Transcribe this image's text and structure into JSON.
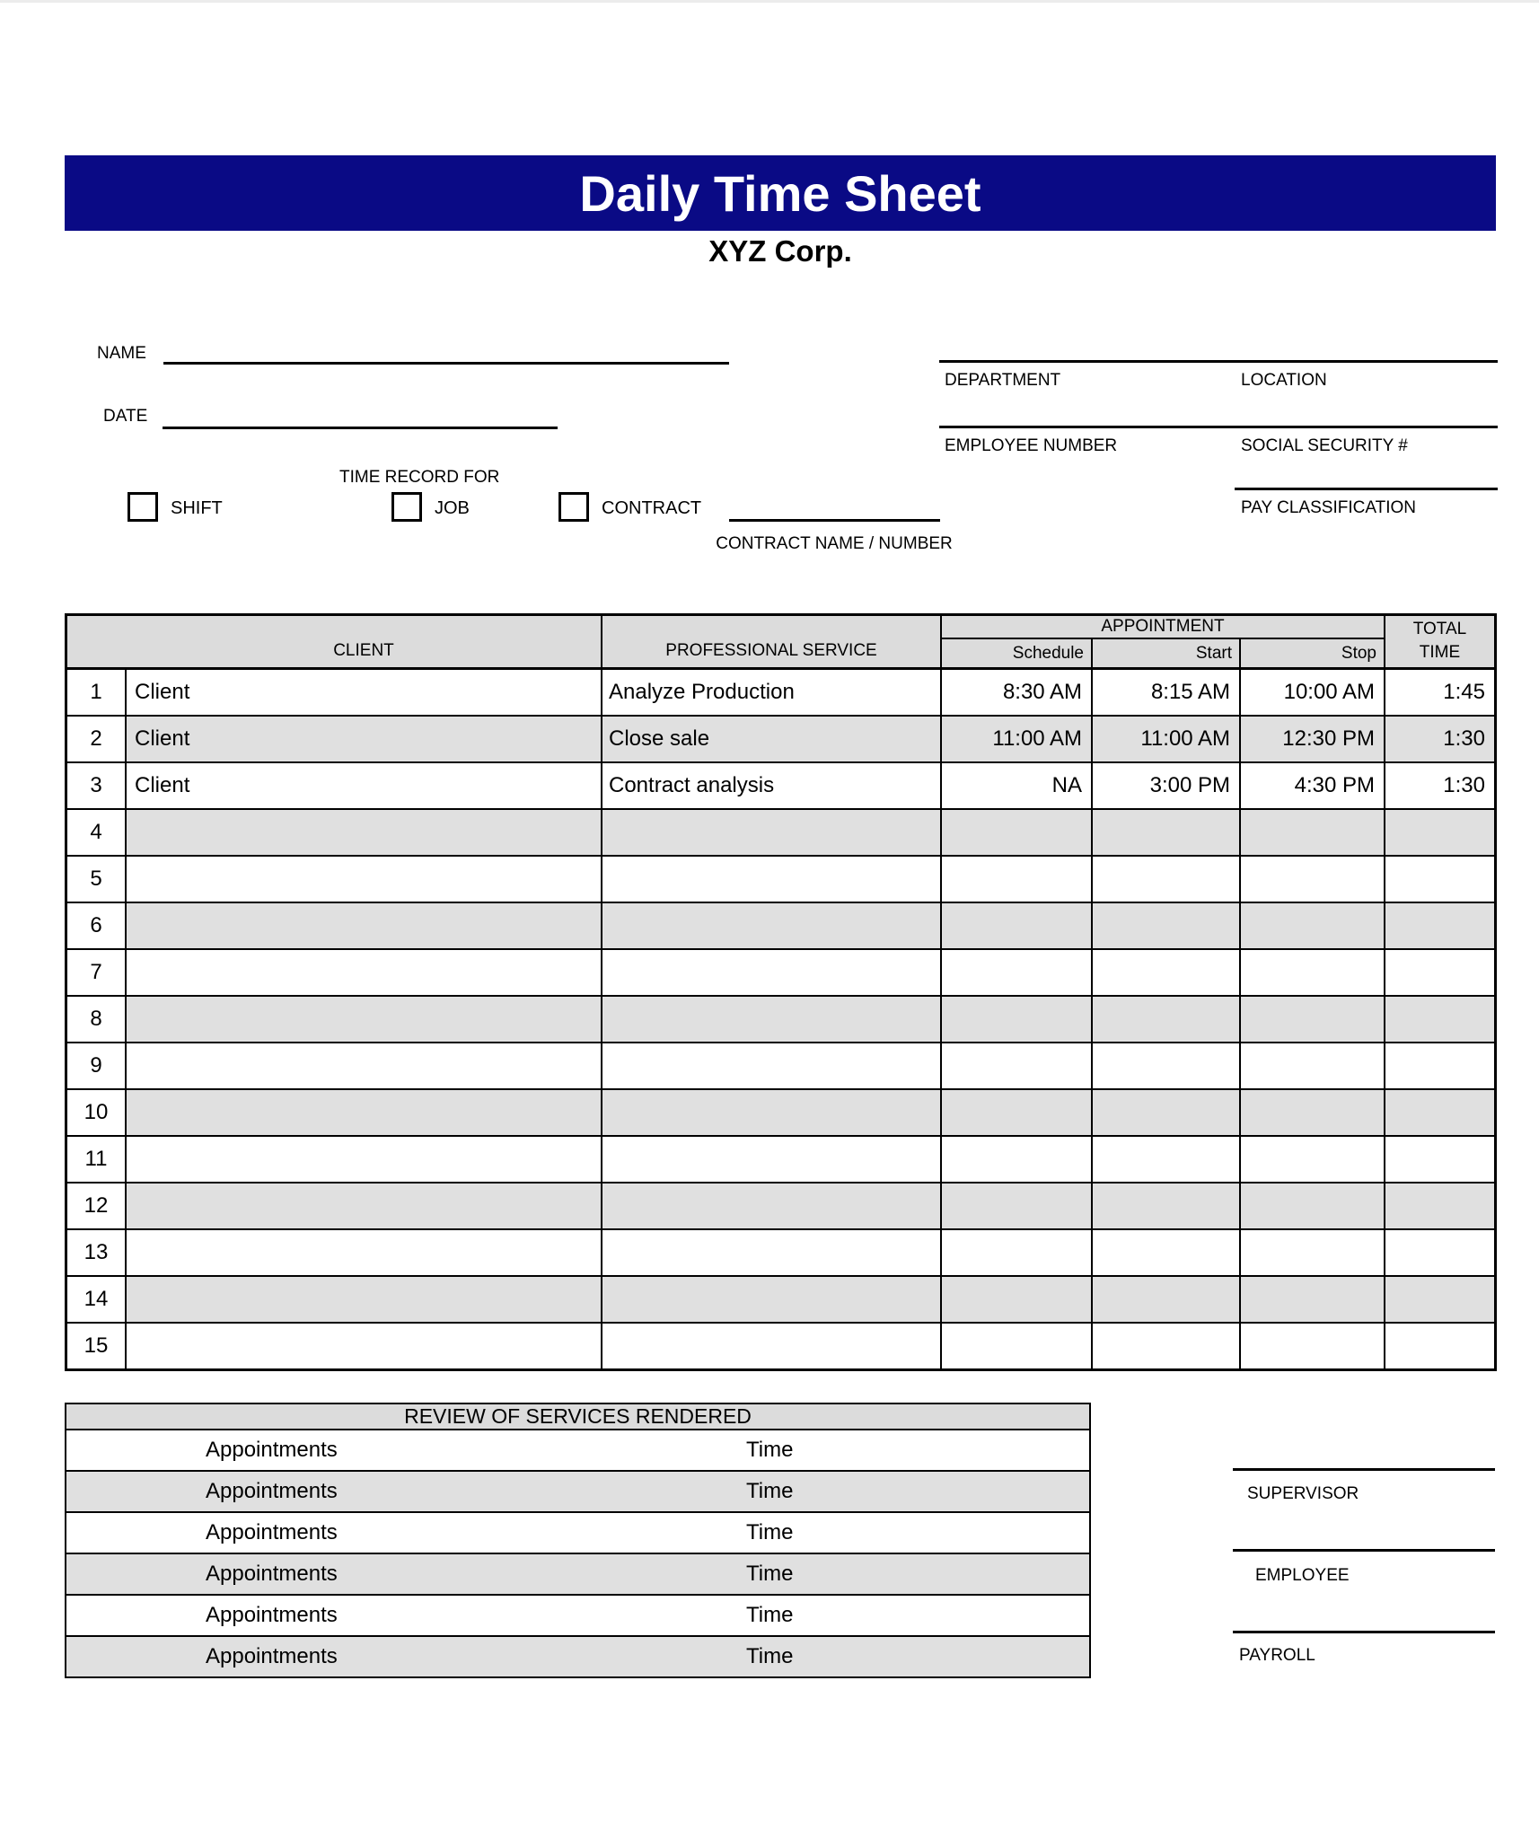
{
  "page": {
    "title": "Daily Time Sheet",
    "company": "XYZ Corp."
  },
  "colors": {
    "title_bar_navy": "#0a0a85",
    "table_header_gray": "#dcdcdc",
    "row_stripe_gray": "#e0e0e0",
    "line_black": "#000000"
  },
  "fields": {
    "name_label": "NAME",
    "date_label": "DATE",
    "department_label": "DEPARTMENT",
    "location_label": "LOCATION",
    "employee_number_label": "EMPLOYEE NUMBER",
    "social_security_label": "SOCIAL SECURITY #",
    "pay_classification_label": "PAY CLASSIFICATION"
  },
  "time_record": {
    "heading": "TIME RECORD FOR",
    "options": [
      {
        "label": "SHIFT",
        "checked": false
      },
      {
        "label": "JOB",
        "checked": false
      },
      {
        "label": "CONTRACT",
        "checked": false
      }
    ],
    "contract_line_label": "CONTRACT NAME / NUMBER"
  },
  "timesheet_table": {
    "headers": {
      "client": "CLIENT",
      "service": "PROFESSIONAL SERVICE",
      "appointment": "APPOINTMENT",
      "schedule": "Schedule",
      "start": "Start",
      "stop": "Stop",
      "total_line1": "TOTAL",
      "total_line2": "TIME"
    },
    "rows": [
      {
        "num": "1",
        "client": "Client",
        "service": "Analyze Production",
        "schedule": "8:30 AM",
        "start": "8:15 AM",
        "stop": "10:00 AM",
        "total": "1:45"
      },
      {
        "num": "2",
        "client": "Client",
        "service": "Close sale",
        "schedule": "11:00 AM",
        "start": "11:00 AM",
        "stop": "12:30 PM",
        "total": "1:30"
      },
      {
        "num": "3",
        "client": "Client",
        "service": "Contract analysis",
        "schedule": "NA",
        "start": "3:00 PM",
        "stop": "4:30 PM",
        "total": "1:30"
      },
      {
        "num": "4",
        "client": "",
        "service": "",
        "schedule": "",
        "start": "",
        "stop": "",
        "total": ""
      },
      {
        "num": "5",
        "client": "",
        "service": "",
        "schedule": "",
        "start": "",
        "stop": "",
        "total": ""
      },
      {
        "num": "6",
        "client": "",
        "service": "",
        "schedule": "",
        "start": "",
        "stop": "",
        "total": ""
      },
      {
        "num": "7",
        "client": "",
        "service": "",
        "schedule": "",
        "start": "",
        "stop": "",
        "total": ""
      },
      {
        "num": "8",
        "client": "",
        "service": "",
        "schedule": "",
        "start": "",
        "stop": "",
        "total": ""
      },
      {
        "num": "9",
        "client": "",
        "service": "",
        "schedule": "",
        "start": "",
        "stop": "",
        "total": ""
      },
      {
        "num": "10",
        "client": "",
        "service": "",
        "schedule": "",
        "start": "",
        "stop": "",
        "total": ""
      },
      {
        "num": "11",
        "client": "",
        "service": "",
        "schedule": "",
        "start": "",
        "stop": "",
        "total": ""
      },
      {
        "num": "12",
        "client": "",
        "service": "",
        "schedule": "",
        "start": "",
        "stop": "",
        "total": ""
      },
      {
        "num": "13",
        "client": "",
        "service": "",
        "schedule": "",
        "start": "",
        "stop": "",
        "total": ""
      },
      {
        "num": "14",
        "client": "",
        "service": "",
        "schedule": "",
        "start": "",
        "stop": "",
        "total": ""
      },
      {
        "num": "15",
        "client": "",
        "service": "",
        "schedule": "",
        "start": "",
        "stop": "",
        "total": ""
      }
    ]
  },
  "review_table": {
    "heading": "REVIEW OF SERVICES RENDERED",
    "rows": [
      {
        "left": "Appointments",
        "right": "Time"
      },
      {
        "left": "Appointments",
        "right": "Time"
      },
      {
        "left": "Appointments",
        "right": "Time"
      },
      {
        "left": "Appointments",
        "right": "Time"
      },
      {
        "left": "Appointments",
        "right": "Time"
      },
      {
        "left": "Appointments",
        "right": "Time"
      }
    ]
  },
  "signatures": [
    {
      "label": "SUPERVISOR"
    },
    {
      "label": "EMPLOYEE"
    },
    {
      "label": "PAYROLL"
    }
  ]
}
